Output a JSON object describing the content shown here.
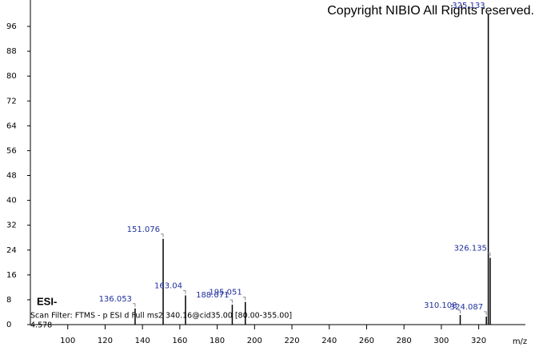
{
  "chart_data": {
    "type": "stick",
    "annotation": "Copyright NIBIO All Rights reserved.",
    "ionization": "ESI-",
    "scan_filter": "Scan Filter: FTMS - p ESI d Full ms2 340.16@cid35.00 [80.00-355.00]",
    "base_intensity": "4.578",
    "x_label": "m/z",
    "x": [
      136.053,
      151.076,
      163.04,
      188.071,
      195.051,
      310.108,
      324.087,
      325.133,
      326.135
    ],
    "values": [
      5.2,
      27.6,
      9.4,
      6.4,
      7.3,
      3.1,
      2.6,
      100,
      21.5
    ],
    "color": "#000000",
    "label_color": "#1f2f9c",
    "xlim": [
      80,
      345
    ],
    "xticks": [
      100,
      120,
      140,
      160,
      180,
      200,
      220,
      240,
      260,
      280,
      300,
      320
    ],
    "ylim": [
      0,
      104.5
    ],
    "yticks": [
      0,
      8,
      16,
      24,
      32,
      40,
      48,
      56,
      64,
      72,
      80,
      88,
      96
    ]
  }
}
